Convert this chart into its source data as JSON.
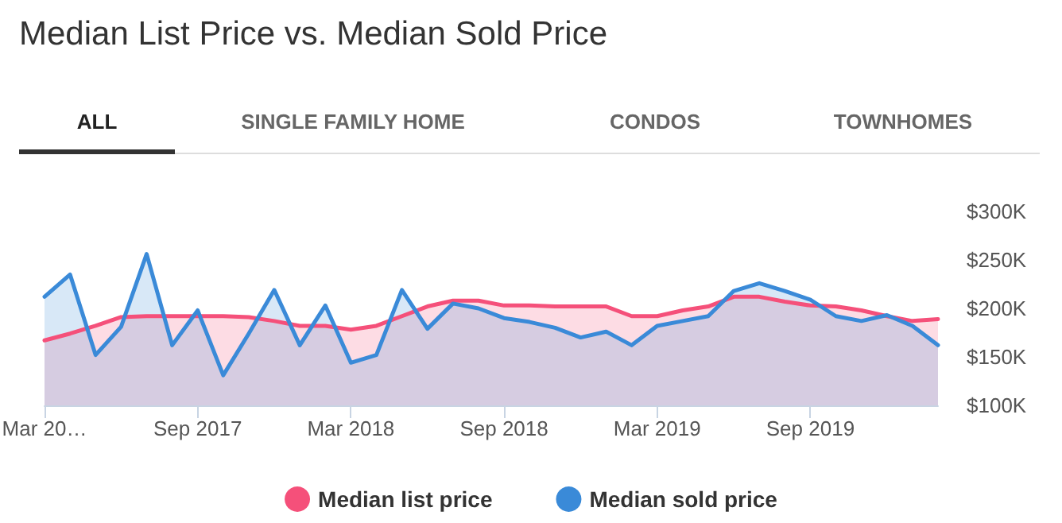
{
  "chart_data": {
    "type": "area",
    "title": "Median List Price vs. Median Sold Price",
    "annotations": [
      "ALL",
      "SINGLE FAMILY HOME",
      "CONDOS",
      "TOWNHOMES"
    ],
    "categories": [
      "Mar 20…",
      null,
      null,
      null,
      null,
      null,
      "Sep 2017",
      null,
      null,
      null,
      null,
      null,
      "Mar 2018",
      null,
      null,
      null,
      null,
      null,
      "Sep 2018",
      null,
      null,
      null,
      null,
      null,
      "Mar 2019",
      null,
      null,
      null,
      null,
      null,
      "Sep 2019",
      null,
      null,
      null,
      null,
      null
    ],
    "series": [
      {
        "name": "Median list price",
        "color": "#f5507a",
        "values": [
          167,
          174,
          182,
          191,
          192,
          192,
          192,
          192,
          191,
          187,
          182,
          182,
          178,
          182,
          192,
          202,
          208,
          208,
          203,
          203,
          202,
          202,
          202,
          192,
          192,
          198,
          202,
          212,
          212,
          207,
          203,
          202,
          198,
          192,
          187,
          189
        ]
      },
      {
        "name": "Median sold price",
        "color": "#3a8ad8",
        "values": [
          212,
          235,
          152,
          181,
          256,
          162,
          198,
          131,
          174,
          219,
          162,
          203,
          144,
          152,
          219,
          179,
          205,
          200,
          190,
          186,
          180,
          170,
          176,
          162,
          182,
          187,
          192,
          218,
          226,
          218,
          209,
          192,
          187,
          193,
          182,
          162
        ]
      }
    ],
    "ylim": [
      100,
      300
    ],
    "yticks": [
      {
        "value": 100,
        "label": "$100K"
      },
      {
        "value": 150,
        "label": "$150K"
      },
      {
        "value": 200,
        "label": "$200K"
      },
      {
        "value": 250,
        "label": "$250K"
      },
      {
        "value": 300,
        "label": "$300K"
      }
    ],
    "grid": false,
    "legend": "bottom",
    "marker": "none",
    "line_style": "solid"
  }
}
